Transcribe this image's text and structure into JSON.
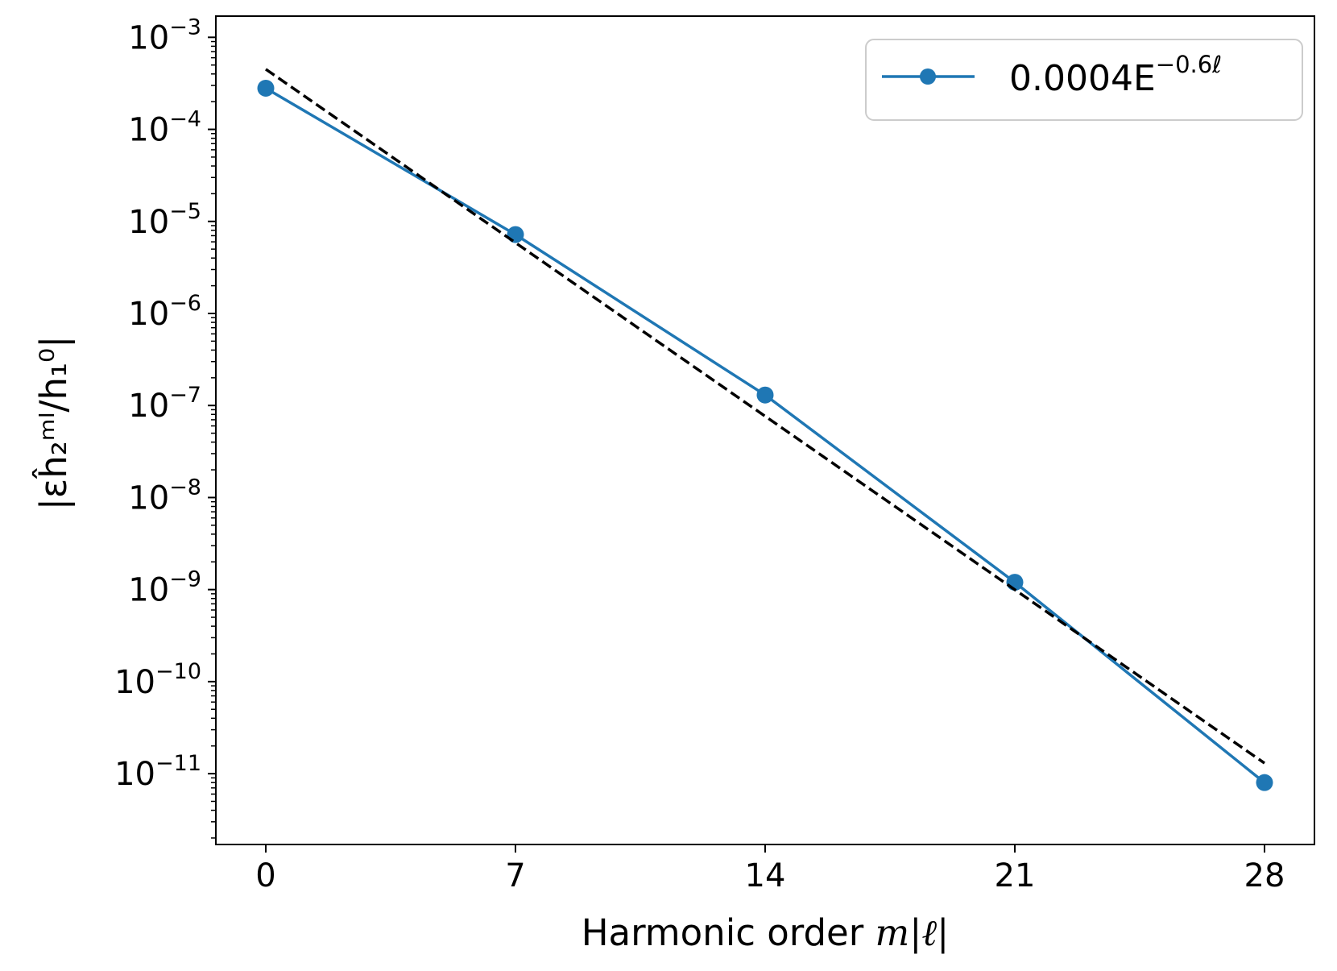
{
  "chart_data": {
    "type": "line",
    "title": "",
    "xlabel_prefix": "Harmonic order ",
    "xlabel_math": "m|ℓ|",
    "ylabel": "|εĥ₂ᵐˡ/h₁⁰|",
    "x_ticks": [
      0,
      7,
      14,
      21,
      28
    ],
    "xlim": [
      -1.4,
      29.4
    ],
    "y_scale": "log",
    "ylim": [
      1.7e-12,
      0.0017
    ],
    "y_ticks": [
      {
        "base": "10",
        "exp": "−3",
        "value": 0.001
      },
      {
        "base": "10",
        "exp": "−4",
        "value": 0.0001
      },
      {
        "base": "10",
        "exp": "−5",
        "value": 1e-05
      },
      {
        "base": "10",
        "exp": "−6",
        "value": 1e-06
      },
      {
        "base": "10",
        "exp": "−7",
        "value": 1e-07
      },
      {
        "base": "10",
        "exp": "−8",
        "value": 1e-08
      },
      {
        "base": "10",
        "exp": "−9",
        "value": 1e-09
      },
      {
        "base": "10",
        "exp": "−10",
        "value": 1e-10
      },
      {
        "base": "10",
        "exp": "−11",
        "value": 1e-11
      }
    ],
    "grid": false,
    "legend_position": "top-right",
    "series": [
      {
        "name_base": "0.0004E",
        "name_exp": "−0.6ℓ",
        "style": "solid-with-markers",
        "color": "#1f77b4",
        "x": [
          0,
          7,
          14,
          21,
          28
        ],
        "y": [
          0.00028,
          7.2e-06,
          1.3e-07,
          1.2e-09,
          8e-12
        ]
      },
      {
        "style": "dashed",
        "color": "#000000",
        "x": [
          0,
          28
        ],
        "y": [
          0.00045,
          1.3e-11
        ]
      }
    ]
  }
}
